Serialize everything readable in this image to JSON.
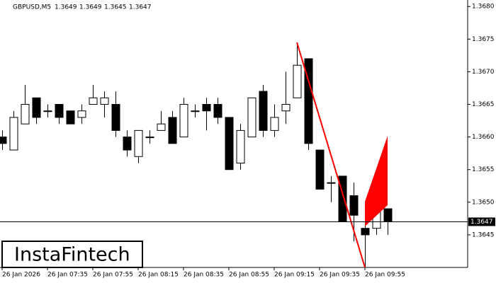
{
  "chart_data": {
    "type": "candlestick",
    "title": "GBPUSD,M5",
    "ohlc_header": [
      1.3649,
      1.3649,
      1.3645,
      1.3647
    ],
    "watermark": "InstaFintech",
    "categories": [
      "26 Jan 2026",
      null,
      null,
      null,
      "26 Jan 07:35",
      null,
      null,
      null,
      "26 Jan 07:55",
      null,
      null,
      null,
      "26 Jan 08:15",
      null,
      null,
      null,
      "26 Jan 08:35",
      null,
      null,
      null,
      "26 Jan 08:55",
      null,
      null,
      null,
      "26 Jan 09:15",
      null,
      null,
      null,
      "26 Jan 09:35",
      null,
      null,
      null,
      "26 Jan 09:55",
      null,
      null
    ],
    "open": [
      1.366,
      1.3658,
      1.3662,
      1.3666,
      1.3664,
      1.3665,
      1.3664,
      1.3663,
      1.3665,
      1.3665,
      1.3665,
      1.366,
      1.3657,
      1.366,
      1.3661,
      1.3663,
      1.366,
      1.3664,
      1.3665,
      1.3665,
      1.3663,
      1.3656,
      1.366,
      1.3667,
      1.3661,
      1.3664,
      1.3666,
      1.3672,
      1.3658,
      1.3653,
      1.3654,
      1.3651,
      1.3646,
      1.3646,
      1.3649
    ],
    "high": [
      1.3661,
      1.3664,
      1.3668,
      1.3666,
      1.3665,
      1.3665,
      1.3664,
      1.3665,
      1.3668,
      1.3667,
      1.3667,
      1.3661,
      1.3661,
      1.3661,
      1.3664,
      1.3664,
      1.3666,
      1.3665,
      1.3666,
      1.3666,
      1.3663,
      1.3662,
      1.3666,
      1.3668,
      1.3665,
      1.367,
      1.3674,
      1.3672,
      1.3658,
      1.3654,
      1.3654,
      1.3653,
      1.3647,
      1.3652,
      1.3649
    ],
    "low": [
      1.3658,
      1.3658,
      1.3662,
      1.3662,
      1.3663,
      1.3662,
      1.3662,
      1.3662,
      1.3665,
      1.3663,
      1.366,
      1.3657,
      1.3656,
      1.3659,
      1.3661,
      1.3659,
      1.366,
      1.3663,
      1.3661,
      1.3662,
      1.3655,
      1.3655,
      1.366,
      1.366,
      1.366,
      1.3662,
      1.3666,
      1.3658,
      1.3652,
      1.365,
      1.3647,
      1.3644,
      1.364,
      1.3645,
      1.3645
    ],
    "close": [
      1.3659,
      1.3663,
      1.3665,
      1.3663,
      1.3664,
      1.3663,
      1.3662,
      1.3664,
      1.3666,
      1.3666,
      1.3661,
      1.3658,
      1.3661,
      1.366,
      1.3662,
      1.3659,
      1.3665,
      1.3664,
      1.3664,
      1.3663,
      1.3655,
      1.3661,
      1.3666,
      1.3661,
      1.3663,
      1.3665,
      1.3671,
      1.3659,
      1.3652,
      1.3653,
      1.3647,
      1.3648,
      1.3645,
      1.365,
      1.3647
    ],
    "current_price": 1.3647,
    "ylim": [
      1.364,
      1.3681
    ],
    "yticks": [
      {
        "value": 1.3645,
        "label": "1.3645"
      },
      {
        "value": 1.365,
        "label": "1.3650"
      },
      {
        "value": 1.3655,
        "label": "1.3655"
      },
      {
        "value": 1.366,
        "label": "1.3660"
      },
      {
        "value": 1.3665,
        "label": "1.3665"
      },
      {
        "value": 1.367,
        "label": "1.3670"
      },
      {
        "value": 1.3675,
        "label": "1.3675"
      },
      {
        "value": 1.368,
        "label": "1.3680"
      }
    ],
    "bull_color": "#ffffff",
    "bear_color": "#000000",
    "line_color": "#000000",
    "pattern_color": "#ff0000"
  }
}
